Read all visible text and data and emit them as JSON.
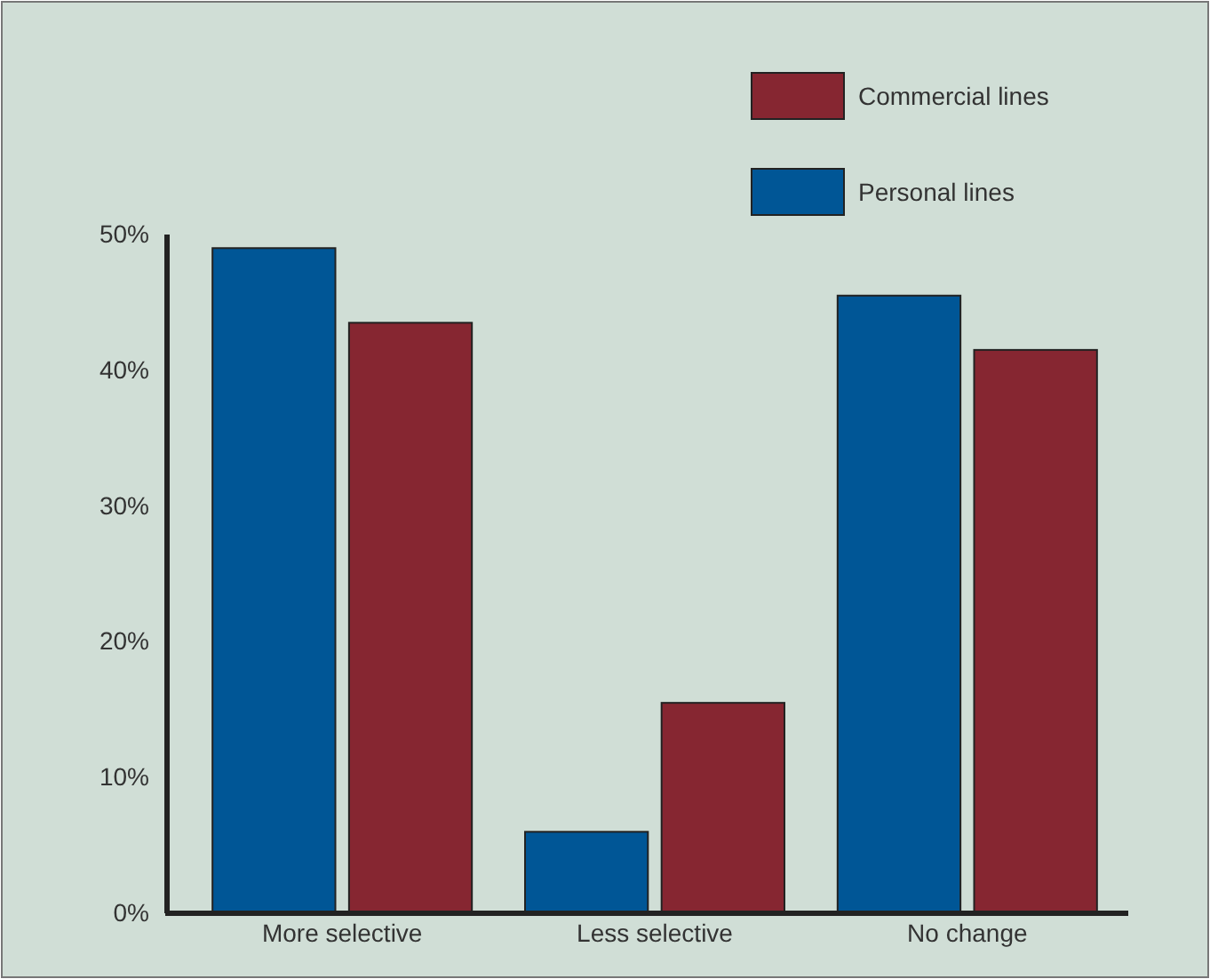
{
  "chart_data": {
    "type": "bar",
    "categories": [
      "More selective",
      "Less selective",
      "No change"
    ],
    "series": [
      {
        "name": "Personal lines",
        "color": "#005696",
        "values": [
          49,
          6,
          45.5
        ]
      },
      {
        "name": "Commercial lines",
        "color": "#862631",
        "values": [
          43.5,
          15.5,
          41.5
        ]
      }
    ],
    "ylim": [
      0,
      50
    ],
    "yticks": [
      {
        "value": 0,
        "label": "0%"
      },
      {
        "value": 10,
        "label": "10%"
      },
      {
        "value": 20,
        "label": "20%"
      },
      {
        "value": 30,
        "label": "30%"
      },
      {
        "value": 40,
        "label": "40%"
      },
      {
        "value": 50,
        "label": "50%"
      }
    ],
    "grid": false,
    "legend": "top right"
  }
}
